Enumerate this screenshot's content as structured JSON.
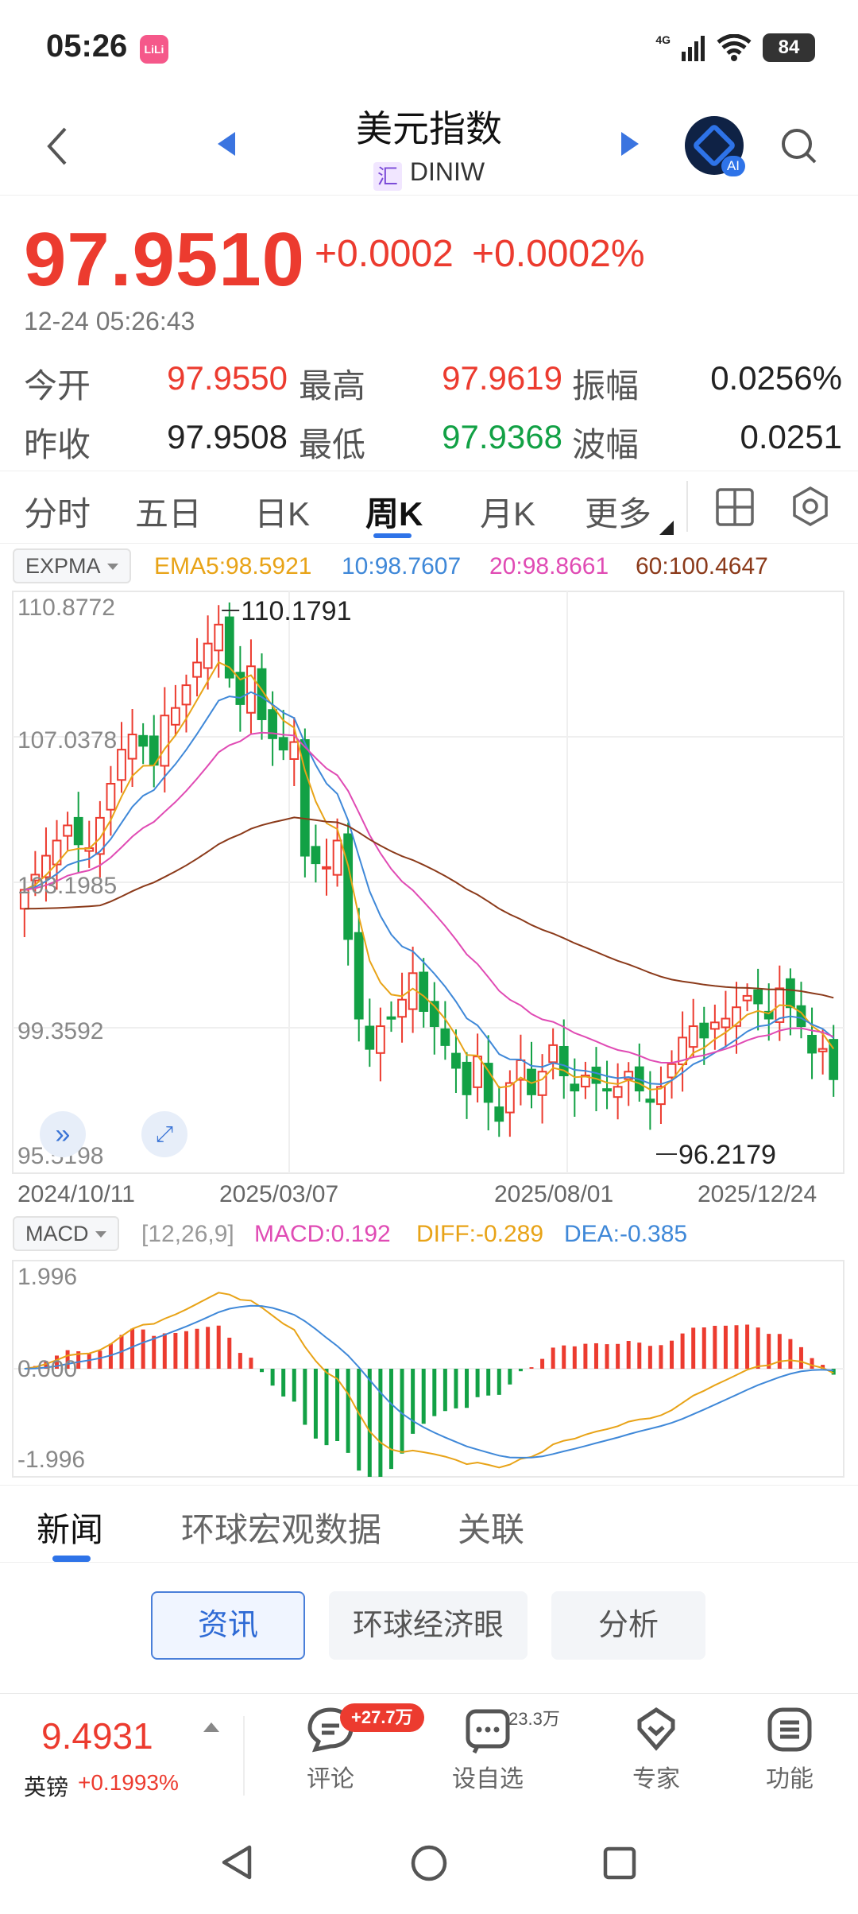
{
  "status_bar": {
    "time": "05:26",
    "app_badge": "LiLi",
    "network": "4G",
    "battery": "84"
  },
  "header": {
    "title": "美元指数",
    "subtitle_tag": "汇",
    "subtitle": "DINIW"
  },
  "quote": {
    "price": "97.9510",
    "change": "+0.0002",
    "change_pct": "+0.0002%",
    "timestamp": "12-24 05:26:43",
    "stats": [
      {
        "label": "今开",
        "value": "97.9550",
        "label2": "最高",
        "value2": "97.9619",
        "label3": "振幅",
        "value3": "0.0256%"
      },
      {
        "label": "昨收",
        "value": "97.9508",
        "label2": "最低",
        "value2": "97.9368",
        "label3": "波幅",
        "value3": "0.0251"
      }
    ]
  },
  "period_tabs": [
    "分时",
    "五日",
    "日K",
    "周K",
    "月K",
    "更多"
  ],
  "active_period": "周K",
  "indicator": {
    "name": "EXPMA",
    "legend": [
      "EMA5:98.5921",
      "10:98.7607",
      "20:98.8661",
      "60:100.4647"
    ]
  },
  "macd": {
    "name": "MACD",
    "params": "[12,26,9]",
    "legend": [
      "MACD:0.192",
      "DIFF:-0.289",
      "DEA:-0.385"
    ]
  },
  "colors": {
    "up": "#ec3b2f",
    "down": "#12a145",
    "ema5": "#e8a317",
    "ema10": "#3f88d8",
    "ema20": "#e04bb4",
    "ema60": "#8b3a1a",
    "accent": "#2e73e8"
  },
  "chart_data": [
    {
      "type": "candlestick",
      "title": "",
      "y_ticks": [
        "110.8772",
        "107.0378",
        "103.1985",
        "99.3592",
        "95.5198"
      ],
      "x_ticks": [
        "2024/10/11",
        "2025/03/07",
        "2025/08/01",
        "2025/12/24"
      ],
      "ylim": [
        95.5198,
        110.8772
      ],
      "high_label": "110.1791",
      "low_label": "96.2179",
      "weeks_sampled": 76,
      "close": [
        103.0,
        103.4,
        103.9,
        104.3,
        104.7,
        104.2,
        104.1,
        104.9,
        105.8,
        106.7,
        107.1,
        106.8,
        106.3,
        107.6,
        107.8,
        108.4,
        109.0,
        109.5,
        110.0,
        108.6,
        107.9,
        108.9,
        107.5,
        107.0,
        106.7,
        106.9,
        103.9,
        103.7,
        103.6,
        104.3,
        101.7,
        99.6,
        98.8,
        99.4,
        99.6,
        100.1,
        100.8,
        99.8,
        99.4,
        98.9,
        98.3,
        97.6,
        98.6,
        97.4,
        96.9,
        97.9,
        98.5,
        97.6,
        98.2,
        98.9,
        98.1,
        97.7,
        98.1,
        97.9,
        97.7,
        97.8,
        98.2,
        97.7,
        97.4,
        97.8,
        98.4,
        99.1,
        99.4,
        99.1,
        99.5,
        99.6,
        99.9,
        100.2,
        100.0,
        99.6,
        100.4,
        99.9,
        99.4,
        98.7,
        98.8,
        98.0
      ],
      "y_unit": "index points"
    },
    {
      "type": "bar",
      "title": "",
      "y_ticks": [
        "1.996",
        "0.000",
        "-1.996"
      ],
      "ylim": [
        -1.996,
        1.996
      ],
      "note": "MACD histogram with DIFF and DEA lines"
    }
  ],
  "news_tabs": [
    "新闻",
    "环球宏观数据",
    "关联"
  ],
  "news_pills": [
    "资讯",
    "环球经济眼",
    "分析"
  ],
  "bottom": {
    "related_price": "9.4931",
    "related_name": "英镑",
    "related_pct": "+0.1993%",
    "comment_badge": "+27.7万",
    "comment_label": "评论",
    "watch_count": "23.3万",
    "watch_label": "设自选",
    "expert_label": "专家",
    "func_label": "功能"
  }
}
